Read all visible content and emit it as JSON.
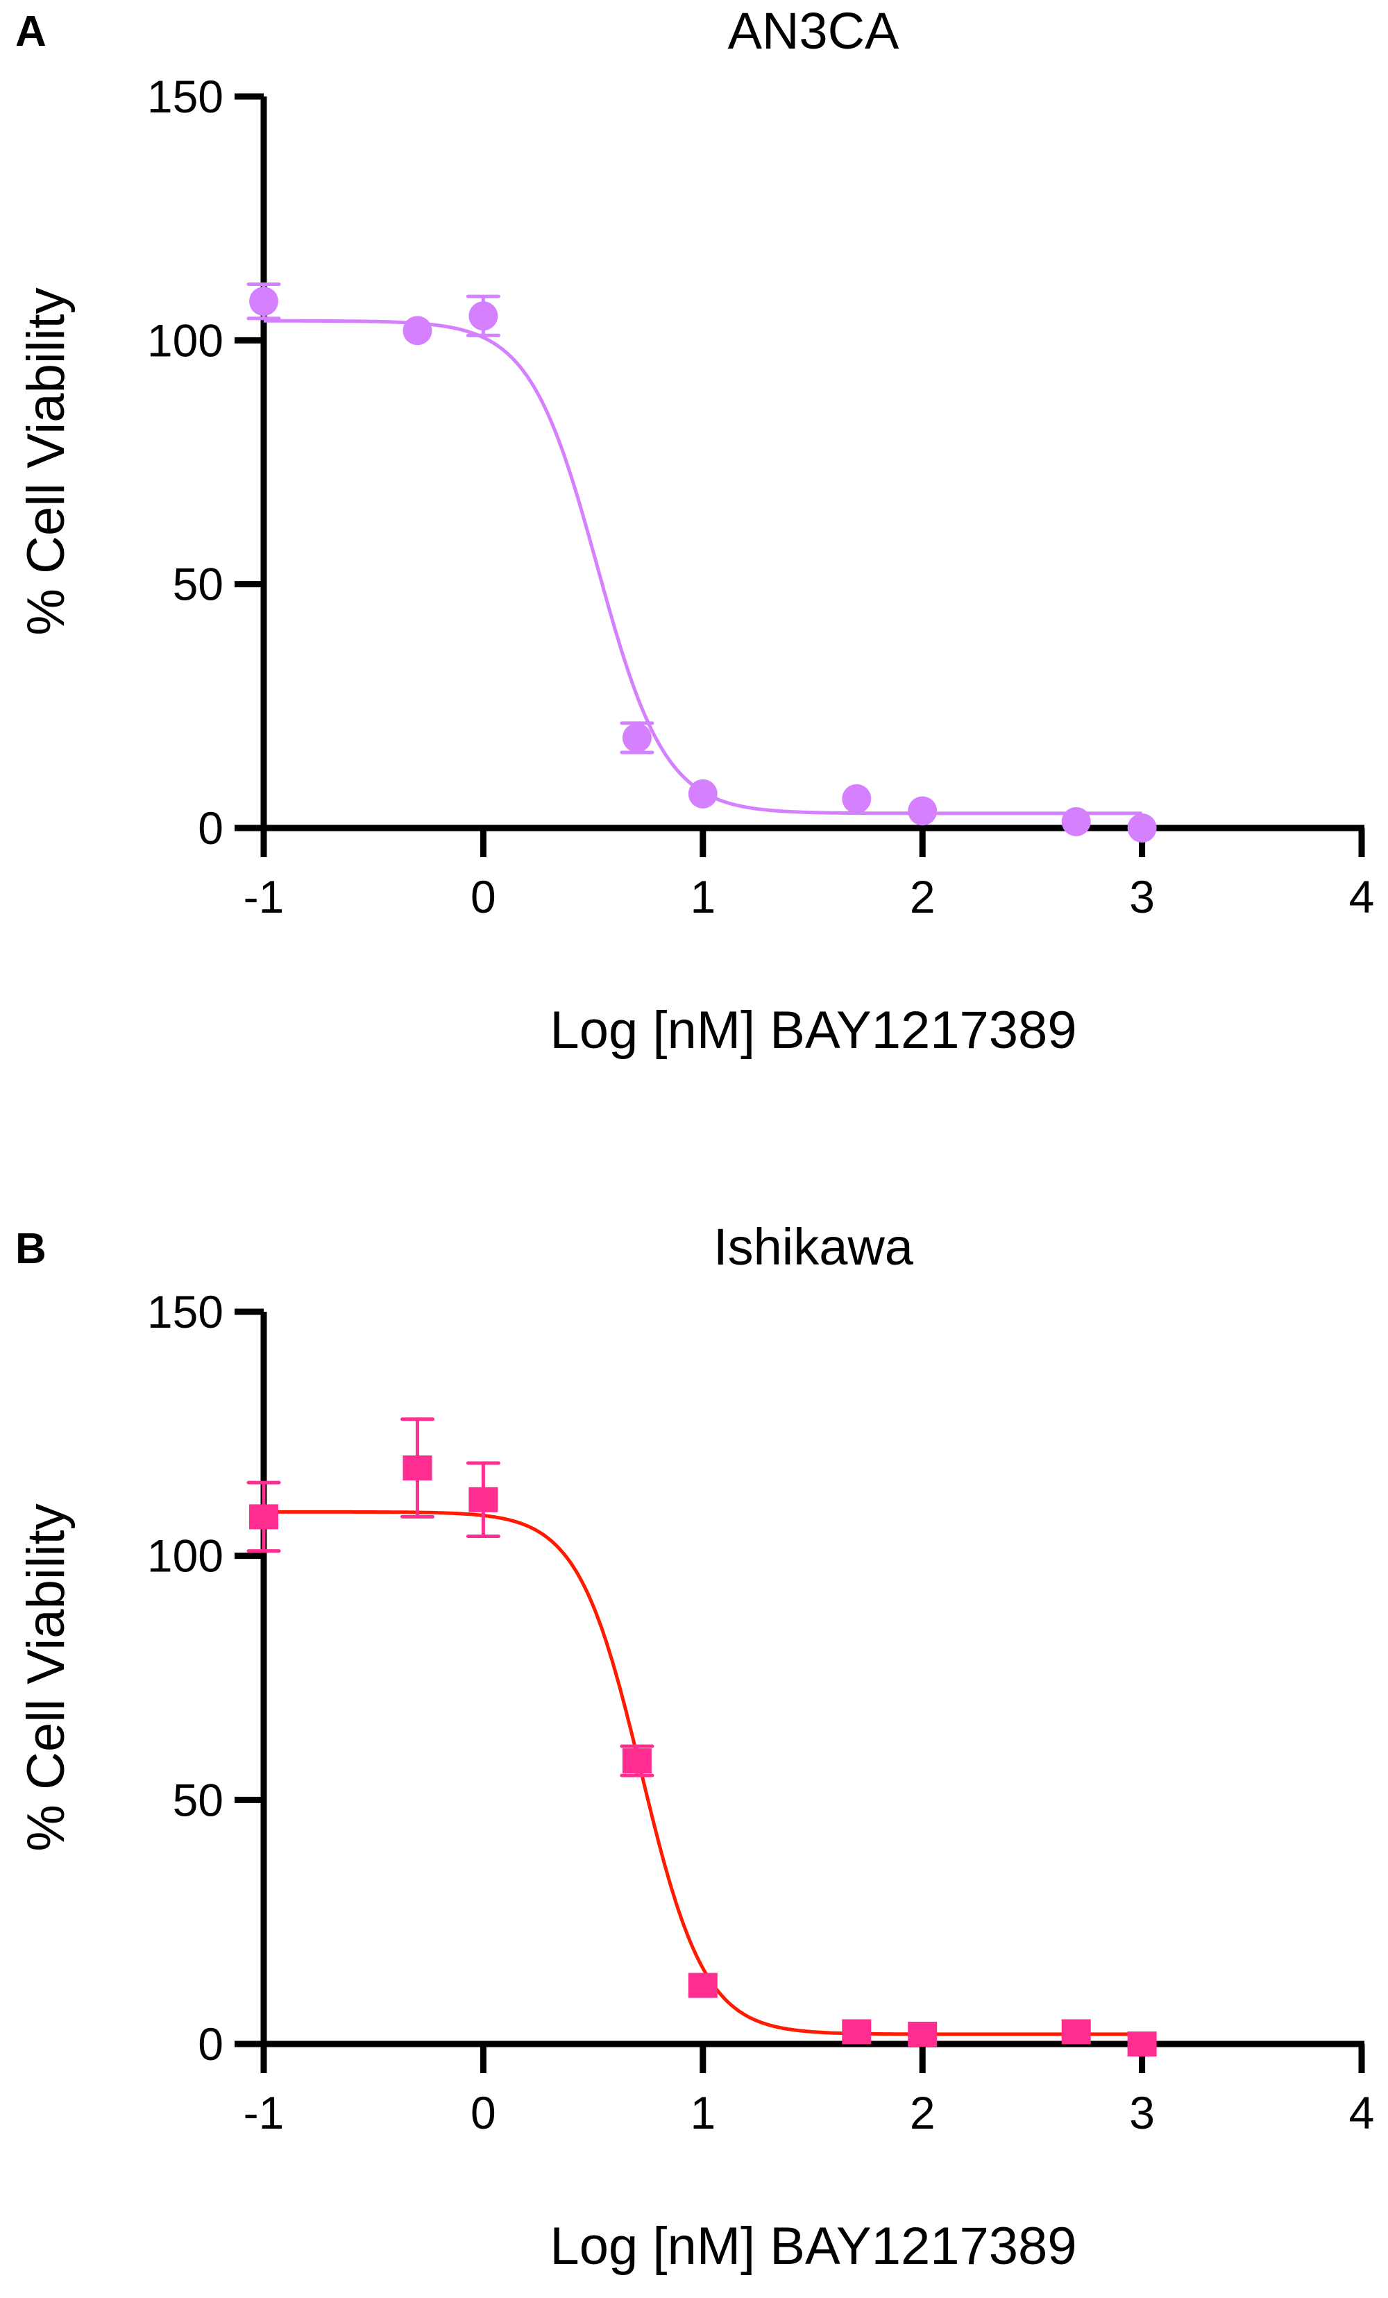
{
  "chart_data": [
    {
      "type": "scatter",
      "panel_label": "A",
      "title": "AN3CA",
      "xlabel": "Log [nM] BAY1217389",
      "ylabel": "% Cell Viability",
      "xlim": [
        -1,
        4
      ],
      "ylim": [
        0,
        150
      ],
      "xticks": [
        "-1",
        "0",
        "1",
        "2",
        "3",
        "4"
      ],
      "yticks": [
        "0",
        "50",
        "100",
        "150"
      ],
      "grid": false,
      "marker": "circle",
      "marker_color": "#D580FF",
      "curve_color": "#D580FF",
      "points": [
        {
          "x": -1,
          "y": 108,
          "err": 3.5
        },
        {
          "x": -0.3,
          "y": 102,
          "err": 0
        },
        {
          "x": 0,
          "y": 105,
          "err": 4
        },
        {
          "x": 0.7,
          "y": 18.5,
          "err": 3
        },
        {
          "x": 1,
          "y": 7,
          "err": 0
        },
        {
          "x": 1.7,
          "y": 6,
          "err": 0
        },
        {
          "x": 2,
          "y": 3.5,
          "err": 0
        },
        {
          "x": 2.7,
          "y": 1.3,
          "err": 0
        },
        {
          "x": 3,
          "y": 0,
          "err": 0
        }
      ],
      "fit": {
        "top": 104,
        "bottom": 3,
        "log_ic50": 0.52,
        "hill": 2.8,
        "x_range": [
          -1,
          3
        ]
      }
    },
    {
      "type": "scatter",
      "panel_label": "B",
      "title": "Ishikawa",
      "xlabel": "Log [nM] BAY1217389",
      "ylabel": "% Cell Viability",
      "xlim": [
        -1,
        4
      ],
      "ylim": [
        0,
        150
      ],
      "xticks": [
        "-1",
        "0",
        "1",
        "2",
        "3",
        "4"
      ],
      "yticks": [
        "0",
        "50",
        "100",
        "150"
      ],
      "grid": false,
      "marker": "square",
      "marker_color": "#FF2D8F",
      "curve_color": "#FF1A00",
      "points": [
        {
          "x": -1,
          "y": 108,
          "err": 7
        },
        {
          "x": -0.3,
          "y": 118,
          "err": 10
        },
        {
          "x": 0,
          "y": 111.5,
          "err": 7.5
        },
        {
          "x": 0.7,
          "y": 58,
          "err": 3
        },
        {
          "x": 1,
          "y": 12,
          "err": 0
        },
        {
          "x": 1.7,
          "y": 2.5,
          "err": 0
        },
        {
          "x": 2,
          "y": 2,
          "err": 0
        },
        {
          "x": 2.7,
          "y": 2.5,
          "err": 0
        },
        {
          "x": 3,
          "y": 0,
          "err": 0
        }
      ],
      "fit": {
        "top": 109,
        "bottom": 2,
        "log_ic50": 0.72,
        "hill": 3,
        "x_range": [
          -1,
          3
        ]
      }
    }
  ]
}
